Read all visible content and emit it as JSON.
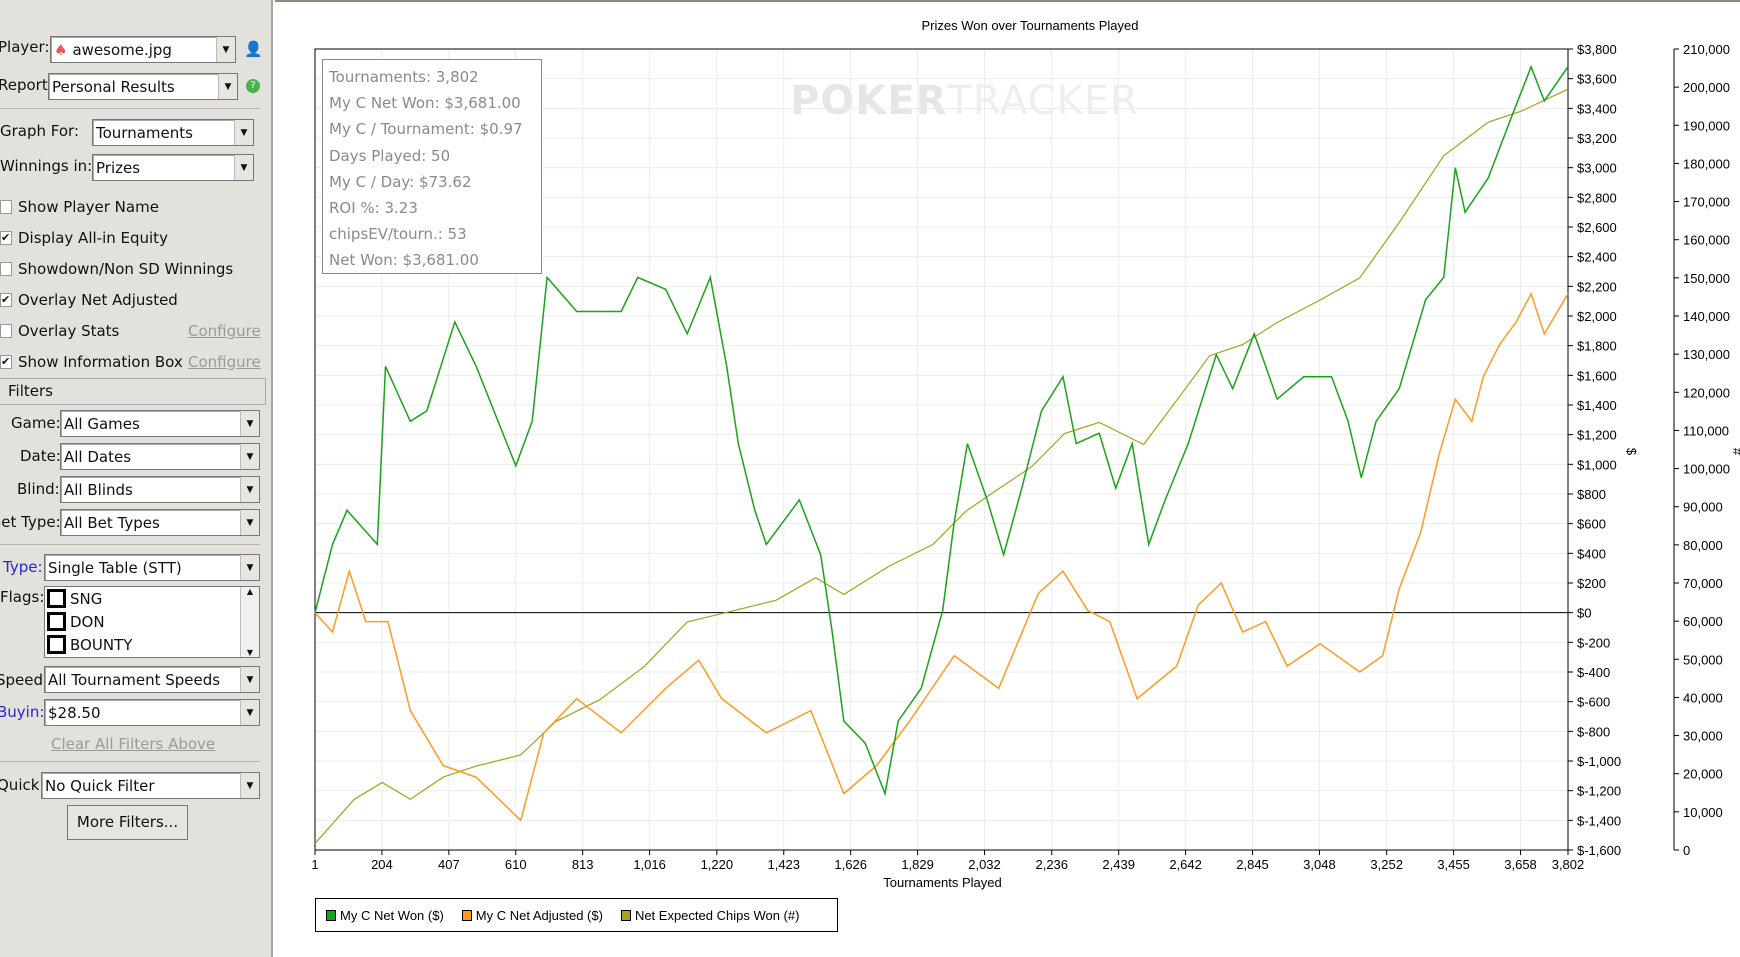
{
  "sidebar": {
    "player_label": "Player:",
    "player_value": "awesome.jpg",
    "report_label": "Report:",
    "report_value": "Personal Results",
    "graph_for_label": "Graph For:",
    "graph_for_value": "Tournaments",
    "winnings_label": "Winnings in:",
    "winnings_value": "Prizes",
    "checkboxes": [
      {
        "label": "Show Player Name",
        "checked": false
      },
      {
        "label": "Display All-in Equity",
        "checked": true
      },
      {
        "label": "Showdown/Non SD Winnings",
        "checked": false
      },
      {
        "label": "Overlay Net Adjusted",
        "checked": true
      },
      {
        "label": "Overlay Stats",
        "checked": false
      },
      {
        "label": "Show Information Box",
        "checked": true
      }
    ],
    "configure_label": "Configure",
    "filters_header": "Filters",
    "game_label": "Game:",
    "game_value": "All Games",
    "date_label": "Date:",
    "date_value": "All Dates",
    "blind_label": "Blind:",
    "blind_value": "All Blinds",
    "bet_type_label": "Bet Type:",
    "bet_type_value": "All Bet Types",
    "type_label": "Type:",
    "type_value": "Single Table (STT)",
    "flags_label": "Flags:",
    "flags": [
      "SNG",
      "DON",
      "BOUNTY"
    ],
    "speed_label": "Speed:",
    "speed_value": "All Tournament Speeds",
    "buyin_label": "Buyin:",
    "buyin_value": "$28.50",
    "clear_filters": "Clear All Filters Above",
    "quick_label": "Quick:",
    "quick_value": "No Quick Filter",
    "more_filters": "More Filters..."
  },
  "info_box": [
    "Tournaments: 3,802",
    "My C Net Won: $3,681.00",
    "My C / Tournament: $0.97",
    "Days Played: 50",
    "My C / Day: $73.62",
    "ROI %: 3.23",
    "chipsEV/tourn.: 53",
    "Net Won: $3,681.00"
  ],
  "watermark": "POKERTRACKER",
  "chart_data": {
    "type": "line",
    "title": "Prizes Won over Tournaments Played",
    "xlabel": "Tournaments Played",
    "ylabel": "$",
    "y2label": "#",
    "xlim": [
      1,
      3802
    ],
    "ylim": [
      -1600,
      3800
    ],
    "y2lim": [
      0,
      210000
    ],
    "xticks": [
      "1",
      "204",
      "407",
      "610",
      "813",
      "1,016",
      "1,220",
      "1,423",
      "1,626",
      "1,829",
      "2,032",
      "2,236",
      "2,439",
      "2,642",
      "2,845",
      "3,048",
      "3,252",
      "3,455",
      "3,658",
      "3,802"
    ],
    "xtick_values": [
      1,
      204,
      407,
      610,
      813,
      1016,
      1220,
      1423,
      1626,
      1829,
      2032,
      2236,
      2439,
      2642,
      2845,
      3048,
      3252,
      3455,
      3658,
      3802
    ],
    "yticks": [
      "$3,800",
      "$3,600",
      "$3,400",
      "$3,200",
      "$3,000",
      "$2,800",
      "$2,600",
      "$2,400",
      "$2,200",
      "$2,000",
      "$1,800",
      "$1,600",
      "$1,400",
      "$1,200",
      "$1,000",
      "$800",
      "$600",
      "$400",
      "$200",
      "$0",
      "$-200",
      "$-400",
      "$-600",
      "$-800",
      "$-1,000",
      "$-1,200",
      "$-1,400",
      "$-1,600"
    ],
    "y2ticks": [
      "210,000",
      "200,000",
      "190,000",
      "180,000",
      "170,000",
      "160,000",
      "150,000",
      "140,000",
      "130,000",
      "120,000",
      "110,000",
      "100,000",
      "90,000",
      "80,000",
      "70,000",
      "60,000",
      "50,000",
      "40,000",
      "30,000",
      "20,000",
      "10,000",
      "0"
    ],
    "legend_position": "bottom-left",
    "series": [
      {
        "name": "My C Net Won ($)",
        "color": "#1aa31a",
        "axis": "left",
        "x": [
          1,
          54,
          98,
          190,
          215,
          290,
          340,
          425,
          490,
          610,
          660,
          705,
          795,
          930,
          980,
          1065,
          1130,
          1200,
          1250,
          1285,
          1335,
          1370,
          1470,
          1535,
          1570,
          1605,
          1670,
          1730,
          1770,
          1840,
          1905,
          1940,
          1980,
          2040,
          2090,
          2145,
          2205,
          2270,
          2310,
          2380,
          2430,
          2480,
          2530,
          2580,
          2650,
          2735,
          2785,
          2850,
          2920,
          3000,
          3085,
          3135,
          3175,
          3220,
          3290,
          3370,
          3425,
          3460,
          3490,
          3560,
          3625,
          3690,
          3730,
          3802
        ],
        "y": [
          0,
          460,
          690,
          460,
          1660,
          1290,
          1360,
          1960,
          1660,
          990,
          1290,
          2260,
          2030,
          2030,
          2260,
          2180,
          1880,
          2260,
          1660,
          1140,
          690,
          460,
          760,
          390,
          -130,
          -730,
          -880,
          -1220,
          -730,
          -510,
          15,
          610,
          1140,
          760,
          390,
          840,
          1360,
          1590,
          1140,
          1210,
          840,
          1140,
          460,
          760,
          1140,
          1740,
          1510,
          1880,
          1440,
          1590,
          1590,
          1290,
          910,
          1290,
          1510,
          2110,
          2260,
          3000,
          2700,
          2930,
          3310,
          3680,
          3450,
          3681
        ]
      },
      {
        "name": "My C Net Adjusted ($)",
        "color": "#ff9a1f",
        "axis": "left",
        "x": [
          1,
          54,
          105,
          155,
          222,
          290,
          390,
          490,
          625,
          695,
          795,
          930,
          1065,
          1165,
          1235,
          1370,
          1505,
          1605,
          1705,
          1805,
          1940,
          2075,
          2195,
          2270,
          2345,
          2412,
          2495,
          2615,
          2680,
          2750,
          2815,
          2885,
          2950,
          3050,
          3170,
          3240,
          3290,
          3355,
          3410,
          3460,
          3510,
          3545,
          3595,
          3645,
          3690,
          3730,
          3802
        ],
        "y": [
          0,
          -130,
          280,
          -60,
          -60,
          -660,
          -1030,
          -1110,
          -1400,
          -810,
          -580,
          -810,
          -510,
          -320,
          -580,
          -810,
          -660,
          -1220,
          -1030,
          -730,
          -290,
          -510,
          130,
          280,
          15,
          -60,
          -580,
          -360,
          50,
          200,
          -130,
          -60,
          -360,
          -210,
          -400,
          -290,
          160,
          540,
          1060,
          1440,
          1290,
          1590,
          1810,
          1960,
          2150,
          1880,
          2150
        ]
      },
      {
        "name": "Net Expected Chips Won (#)",
        "color": "#a3a31a",
        "axis": "right",
        "x": [
          1,
          120,
          205,
          290,
          390,
          490,
          625,
          730,
          865,
          1000,
          1130,
          1265,
          1400,
          1520,
          1605,
          1740,
          1875,
          1975,
          2075,
          2175,
          2275,
          2380,
          2515,
          2615,
          2715,
          2815,
          2920,
          3050,
          3170,
          3290,
          3425,
          3560,
          3660,
          3802
        ],
        "y": [
          1700,
          13300,
          17700,
          13300,
          19100,
          22000,
          24900,
          33600,
          39400,
          48100,
          59800,
          62600,
          65500,
          71400,
          67000,
          74300,
          80100,
          88800,
          94700,
          100500,
          109200,
          112100,
          106300,
          117900,
          129600,
          132500,
          138300,
          144200,
          150000,
          164500,
          182000,
          190800,
          193700,
          199500
        ]
      }
    ]
  }
}
